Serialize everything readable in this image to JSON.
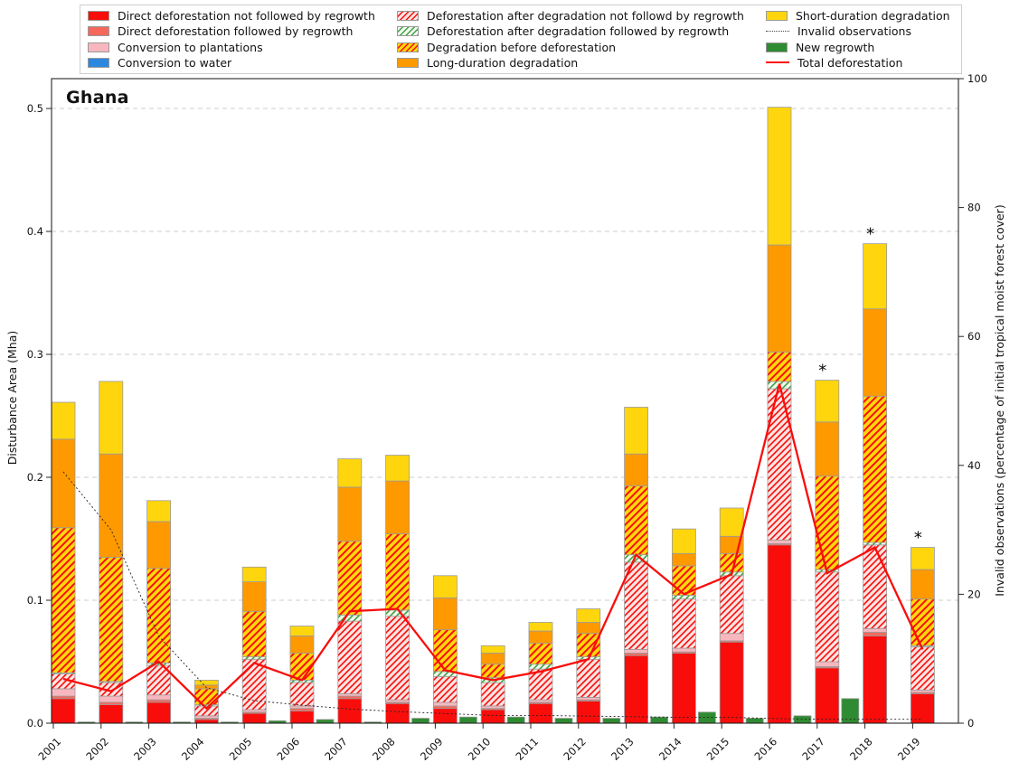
{
  "title": "Ghana",
  "y_left_label": "Disturbance Area (Mha)",
  "y_right_label": "Invalid observations (percentage of initial tropical moist forest cover)",
  "y_left_ticks": [
    "0.0",
    "0.1",
    "0.2",
    "0.3",
    "0.4",
    "0.5"
  ],
  "y_right_ticks": [
    "0",
    "20",
    "40",
    "60",
    "80",
    "100"
  ],
  "colors": {
    "red": "#f90d0b",
    "salmon": "#f4695c",
    "pink": "#f8b7bf",
    "blue": "#2c87de",
    "orange": "#fe9900",
    "yellow": "#ffd60d",
    "green": "#2f8b31",
    "hatch_red": "#f90d0b",
    "hatch_green": "#3fa045",
    "hatch_white_bg": "#fce3e1",
    "hatch_green_bg": "#f2faee",
    "hatch_yellow_bg": "#ffd60d",
    "total_line": "#f90d0b",
    "invalid_line": "#222222",
    "bar_stroke": "#9b9b9b",
    "grid": "#cccccc",
    "axis": "#262626"
  },
  "legend_items": [
    {
      "label": "Direct deforestation not followed by regrowth",
      "swatch": "red"
    },
    {
      "label": "Direct deforestation followed by regrowth",
      "swatch": "salmon"
    },
    {
      "label": "Conversion to plantations",
      "swatch": "pink"
    },
    {
      "label": "Conversion to water",
      "swatch": "blue"
    },
    {
      "label": "Deforestation after degradation not followd by regrowth",
      "swatch": "hatch-red-white"
    },
    {
      "label": "Deforestation after degradation followed by regrowth",
      "swatch": "hatch-green-white"
    },
    {
      "label": "Degradation before deforestation",
      "swatch": "hatch-red-yellow"
    },
    {
      "label": "Long-duration degradation",
      "swatch": "orange"
    },
    {
      "label": "Short-duration degradation",
      "swatch": "yellow"
    },
    {
      "label": "Invalid observations",
      "swatch": "dotted-line"
    },
    {
      "label": "New regrowth",
      "swatch": "green"
    },
    {
      "label": "Total deforestation",
      "swatch": "red-line"
    }
  ],
  "chart_data": {
    "type": "bar",
    "stacked": true,
    "title": "Ghana",
    "xlabel": "",
    "ylabel_left": "Disturbance Area (Mha)",
    "ylabel_right": "Invalid observations (percentage of initial tropical moist forest cover)",
    "ylim_left": [
      0,
      0.524
    ],
    "ylim_right": [
      0,
      100
    ],
    "grid": "horizontal-dashed",
    "legend_position": "top",
    "categories": [
      "2001",
      "2002",
      "2003",
      "2004",
      "2005",
      "2006",
      "2007",
      "2008",
      "2009",
      "2010",
      "2011",
      "2012",
      "2013",
      "2014",
      "2015",
      "2016",
      "2017",
      "2018",
      "2019"
    ],
    "series": [
      {
        "name": "Direct deforestation not followed by regrowth",
        "fill": "red",
        "values": [
          0.02,
          0.015,
          0.017,
          0.003,
          0.008,
          0.01,
          0.02,
          0.016,
          0.012,
          0.011,
          0.016,
          0.018,
          0.055,
          0.057,
          0.066,
          0.145,
          0.045,
          0.071,
          0.024
        ]
      },
      {
        "name": "Direct deforestation followed by regrowth",
        "fill": "salmon",
        "values": [
          0.002,
          0.002,
          0.002,
          0.001,
          0.001,
          0.002,
          0.002,
          0.001,
          0.002,
          0.001,
          0.001,
          0.001,
          0.002,
          0.001,
          0.001,
          0.001,
          0.001,
          0.003,
          0.001
        ]
      },
      {
        "name": "Conversion to plantations",
        "fill": "pink",
        "values": [
          0.006,
          0.005,
          0.004,
          0.002,
          0.002,
          0.002,
          0.002,
          0.002,
          0.003,
          0.002,
          0.002,
          0.002,
          0.003,
          0.003,
          0.006,
          0.003,
          0.004,
          0.003,
          0.002
        ]
      },
      {
        "name": "Conversion to water",
        "fill": "blue",
        "values": [
          0,
          0,
          0,
          0,
          0,
          0,
          0,
          0,
          0,
          0,
          0,
          0,
          0,
          0,
          0,
          0,
          0,
          0,
          0
        ]
      },
      {
        "name": "Deforestation after degradation not followd by regrowth",
        "fill": "hatch-red-white",
        "values": [
          0.012,
          0.011,
          0.024,
          0.008,
          0.041,
          0.019,
          0.059,
          0.068,
          0.021,
          0.019,
          0.025,
          0.031,
          0.071,
          0.04,
          0.047,
          0.123,
          0.073,
          0.068,
          0.035
        ]
      },
      {
        "name": "Deforestation after degradation followed by regrowth",
        "fill": "hatch-green-white",
        "values": [
          0.001,
          0.001,
          0.002,
          0.001,
          0.002,
          0.002,
          0.005,
          0.005,
          0.004,
          0.004,
          0.004,
          0.002,
          0.006,
          0.003,
          0.003,
          0.006,
          0.002,
          0.002,
          0.001
        ]
      },
      {
        "name": "Degradation before deforestation",
        "fill": "hatch-red-yellow",
        "values": [
          0.118,
          0.101,
          0.077,
          0.013,
          0.037,
          0.022,
          0.06,
          0.062,
          0.034,
          0.011,
          0.017,
          0.019,
          0.056,
          0.024,
          0.015,
          0.024,
          0.076,
          0.119,
          0.038
        ]
      },
      {
        "name": "Long-duration degradation",
        "fill": "orange",
        "values": [
          0.072,
          0.084,
          0.038,
          0.003,
          0.024,
          0.014,
          0.044,
          0.043,
          0.026,
          0.009,
          0.01,
          0.009,
          0.026,
          0.01,
          0.014,
          0.087,
          0.044,
          0.071,
          0.024
        ]
      },
      {
        "name": "Short-duration degradation",
        "fill": "yellow",
        "values": [
          0.03,
          0.059,
          0.017,
          0.004,
          0.012,
          0.008,
          0.023,
          0.021,
          0.018,
          0.006,
          0.007,
          0.011,
          0.038,
          0.02,
          0.023,
          0.112,
          0.034,
          0.053,
          0.018
        ]
      }
    ],
    "new_regrowth": {
      "name": "New regrowth",
      "fill": "green",
      "values": [
        0.001,
        0.001,
        0.001,
        0.001,
        0.002,
        0.003,
        0.001,
        0.004,
        0.005,
        0.005,
        0.004,
        0.004,
        0.005,
        0.009,
        0.004,
        0.006,
        0.02,
        0,
        0
      ]
    },
    "lines": [
      {
        "name": "Invalid observations",
        "axis": "right",
        "style": "dotted",
        "values": [
          39,
          30,
          13.5,
          5.5,
          3.5,
          2.8,
          2.2,
          1.8,
          1.5,
          1.2,
          1.2,
          1.1,
          1.0,
          0.9,
          0.9,
          0.7,
          0.6,
          0.6,
          0.6
        ]
      },
      {
        "name": "Total deforestation",
        "axis": "left",
        "style": "solid",
        "values": [
          0.036,
          0.026,
          0.05,
          0.012,
          0.049,
          0.035,
          0.091,
          0.093,
          0.043,
          0.035,
          0.042,
          0.052,
          0.137,
          0.105,
          0.121,
          0.276,
          0.122,
          0.143,
          0.06
        ]
      }
    ],
    "asterisk_years": [
      "2017",
      "2018",
      "2019"
    ]
  }
}
